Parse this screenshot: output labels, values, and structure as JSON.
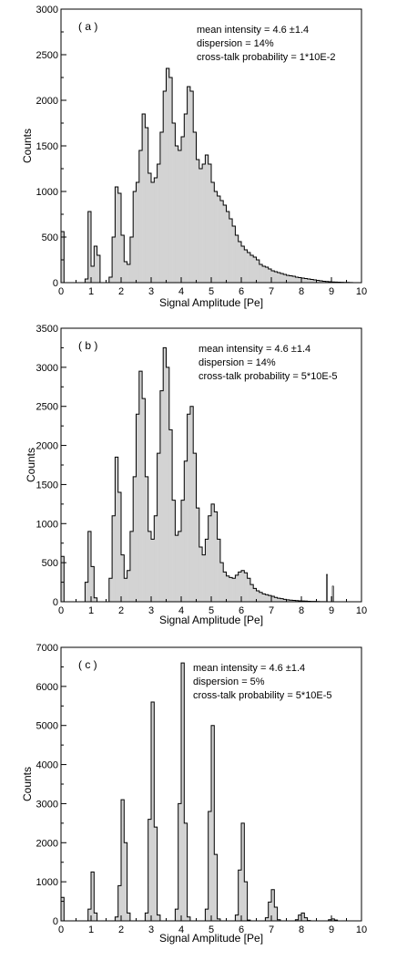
{
  "chart_data": [
    {
      "type": "histogram",
      "panel_label": "( a )",
      "annotations": [
        "mean intensity = 4.6 ±1.4",
        "dispersion = 14%",
        "cross-talk probability = 1*10E-2"
      ],
      "xlabel": "Signal Amplitude [Pe]",
      "ylabel": "Counts",
      "xlim": [
        0,
        10
      ],
      "ylim": [
        0,
        3000
      ],
      "xticks": [
        0,
        1,
        2,
        3,
        4,
        5,
        6,
        7,
        8,
        9,
        10
      ],
      "yticks": [
        0,
        500,
        1000,
        1500,
        2000,
        2500,
        3000
      ],
      "bin_width": 0.1,
      "x": [
        0.0,
        0.1,
        0.2,
        0.3,
        0.4,
        0.5,
        0.6,
        0.7,
        0.8,
        0.9,
        1.0,
        1.1,
        1.2,
        1.3,
        1.4,
        1.5,
        1.6,
        1.7,
        1.8,
        1.9,
        2.0,
        2.1,
        2.2,
        2.3,
        2.4,
        2.5,
        2.6,
        2.7,
        2.8,
        2.9,
        3.0,
        3.1,
        3.2,
        3.3,
        3.4,
        3.5,
        3.6,
        3.7,
        3.8,
        3.9,
        4.0,
        4.1,
        4.2,
        4.3,
        4.4,
        4.5,
        4.6,
        4.7,
        4.8,
        4.9,
        5.0,
        5.1,
        5.2,
        5.3,
        5.4,
        5.5,
        5.6,
        5.7,
        5.8,
        5.9,
        6.0,
        6.1,
        6.2,
        6.3,
        6.4,
        6.5,
        6.6,
        6.7,
        6.8,
        6.9,
        7.0,
        7.1,
        7.2,
        7.3,
        7.4,
        7.5,
        7.6,
        7.7,
        7.8,
        7.9,
        8.0,
        8.1,
        8.2,
        8.3,
        8.4,
        8.5,
        8.6,
        8.7,
        8.8,
        8.9,
        9.0,
        9.1,
        9.2,
        9.3,
        9.4,
        9.5,
        9.6,
        9.7,
        9.8,
        9.9
      ],
      "values": [
        560,
        0,
        0,
        0,
        0,
        0,
        0,
        0,
        40,
        780,
        180,
        400,
        300,
        0,
        0,
        0,
        60,
        500,
        1050,
        980,
        520,
        230,
        200,
        500,
        1000,
        1100,
        1450,
        1850,
        1700,
        1200,
        1100,
        1150,
        1300,
        1650,
        2100,
        2350,
        2250,
        1750,
        1500,
        1450,
        1600,
        1850,
        2150,
        2100,
        1650,
        1350,
        1250,
        1300,
        1400,
        1300,
        1100,
        1000,
        950,
        900,
        850,
        780,
        700,
        620,
        520,
        450,
        400,
        360,
        330,
        300,
        280,
        250,
        200,
        180,
        170,
        150,
        130,
        120,
        110,
        100,
        90,
        80,
        75,
        70,
        60,
        55,
        50,
        45,
        40,
        35,
        30,
        25,
        20,
        15,
        12,
        10,
        8,
        6,
        5,
        4,
        3,
        2,
        1,
        0,
        0,
        0
      ]
    },
    {
      "type": "histogram",
      "panel_label": "( b )",
      "annotations": [
        "mean intensity = 4.6 ±1.4",
        "dispersion = 14%",
        "cross-talk probability = 5*10E-5"
      ],
      "xlabel": "Signal Amplitude [Pe]",
      "ylabel": "Counts",
      "xlim": [
        0,
        10
      ],
      "ylim": [
        0,
        3500
      ],
      "xticks": [
        0,
        1,
        2,
        3,
        4,
        5,
        6,
        7,
        8,
        9,
        10
      ],
      "yticks": [
        0,
        500,
        1000,
        1500,
        2000,
        2500,
        3000,
        3500
      ],
      "bin_width": 0.1,
      "x": [
        0.0,
        0.1,
        0.2,
        0.3,
        0.4,
        0.5,
        0.6,
        0.7,
        0.8,
        0.9,
        1.0,
        1.1,
        1.2,
        1.3,
        1.4,
        1.5,
        1.6,
        1.7,
        1.8,
        1.9,
        2.0,
        2.1,
        2.2,
        2.3,
        2.4,
        2.5,
        2.6,
        2.7,
        2.8,
        2.9,
        3.0,
        3.1,
        3.2,
        3.3,
        3.4,
        3.5,
        3.6,
        3.7,
        3.8,
        3.9,
        4.0,
        4.1,
        4.2,
        4.3,
        4.4,
        4.5,
        4.6,
        4.7,
        4.8,
        4.9,
        5.0,
        5.1,
        5.2,
        5.3,
        5.4,
        5.5,
        5.6,
        5.7,
        5.8,
        5.9,
        6.0,
        6.1,
        6.2,
        6.3,
        6.4,
        6.5,
        6.6,
        6.7,
        6.8,
        6.9,
        7.0,
        7.1,
        7.2,
        7.3,
        7.4,
        7.5,
        7.6,
        7.7,
        7.8,
        7.9,
        8.0,
        8.1,
        8.2,
        8.3,
        8.4,
        8.5,
        8.6,
        8.7,
        8.8,
        8.9,
        9.0,
        9.1,
        9.2,
        9.3,
        9.4,
        9.5,
        9.6,
        9.7,
        9.8,
        9.9
      ],
      "values": [
        580,
        0,
        0,
        0,
        0,
        0,
        0,
        0,
        250,
        900,
        450,
        50,
        0,
        0,
        0,
        0,
        300,
        1100,
        1850,
        1400,
        600,
        300,
        400,
        900,
        1600,
        2400,
        2950,
        2600,
        1600,
        900,
        800,
        1100,
        1900,
        2700,
        3250,
        3000,
        2200,
        1300,
        850,
        900,
        1300,
        1800,
        2400,
        2500,
        1900,
        1200,
        700,
        600,
        800,
        1100,
        1250,
        1150,
        800,
        500,
        380,
        330,
        310,
        300,
        340,
        380,
        400,
        370,
        300,
        220,
        170,
        140,
        120,
        100,
        90,
        80,
        70,
        55,
        45,
        40,
        30,
        25,
        20,
        18,
        15,
        12,
        10,
        8,
        6,
        5,
        4,
        3,
        2,
        1,
        0,
        0,
        0,
        0,
        0,
        0,
        0,
        0,
        0,
        0,
        0,
        0
      ],
      "spikes": [
        {
          "x": 8.85,
          "value": 350
        },
        {
          "x": 9.05,
          "value": 200
        }
      ]
    },
    {
      "type": "histogram",
      "panel_label": "( c )",
      "annotations": [
        "mean intensity = 4.6 ±1.4",
        "dispersion = 5%",
        "cross-talk probability = 5*10E-5"
      ],
      "xlabel": "Signal Amplitude [Pe]",
      "ylabel": "Counts",
      "xlim": [
        0,
        10
      ],
      "ylim": [
        0,
        7000
      ],
      "xticks": [
        0,
        1,
        2,
        3,
        4,
        5,
        6,
        7,
        8,
        9,
        10
      ],
      "yticks": [
        0,
        1000,
        2000,
        3000,
        4000,
        5000,
        6000,
        7000
      ],
      "bin_width": 0.1,
      "x": [
        0.0,
        0.1,
        0.2,
        0.3,
        0.4,
        0.5,
        0.6,
        0.7,
        0.8,
        0.9,
        1.0,
        1.1,
        1.2,
        1.3,
        1.4,
        1.5,
        1.6,
        1.7,
        1.8,
        1.9,
        2.0,
        2.1,
        2.2,
        2.3,
        2.4,
        2.5,
        2.6,
        2.7,
        2.8,
        2.9,
        3.0,
        3.1,
        3.2,
        3.3,
        3.4,
        3.5,
        3.6,
        3.7,
        3.8,
        3.9,
        4.0,
        4.1,
        4.2,
        4.3,
        4.4,
        4.5,
        4.6,
        4.7,
        4.8,
        4.9,
        5.0,
        5.1,
        5.2,
        5.3,
        5.4,
        5.5,
        5.6,
        5.7,
        5.8,
        5.9,
        6.0,
        6.1,
        6.2,
        6.3,
        6.4,
        6.5,
        6.6,
        6.7,
        6.8,
        6.9,
        7.0,
        7.1,
        7.2,
        7.3,
        7.4,
        7.5,
        7.6,
        7.7,
        7.8,
        7.9,
        8.0,
        8.1,
        8.2,
        8.3,
        8.4,
        8.5,
        8.6,
        8.7,
        8.8,
        8.9,
        9.0,
        9.1,
        9.2,
        9.3,
        9.4,
        9.5,
        9.6,
        9.7,
        9.8,
        9.9
      ],
      "values": [
        600,
        0,
        0,
        0,
        0,
        0,
        0,
        0,
        0,
        300,
        1250,
        200,
        0,
        0,
        0,
        0,
        0,
        0,
        100,
        900,
        3100,
        2000,
        200,
        0,
        0,
        0,
        0,
        0,
        200,
        2600,
        5600,
        2400,
        150,
        0,
        0,
        0,
        0,
        0,
        300,
        3000,
        6600,
        2500,
        100,
        0,
        0,
        0,
        0,
        0,
        300,
        2800,
        5000,
        1700,
        50,
        0,
        0,
        0,
        0,
        0,
        150,
        1300,
        2500,
        1000,
        20,
        0,
        0,
        0,
        0,
        0,
        80,
        480,
        800,
        350,
        30,
        0,
        0,
        0,
        0,
        0,
        30,
        150,
        200,
        80,
        10,
        0,
        0,
        0,
        0,
        0,
        0,
        30,
        50,
        20,
        0,
        0,
        0,
        0,
        0,
        0,
        0,
        0
      ]
    }
  ]
}
